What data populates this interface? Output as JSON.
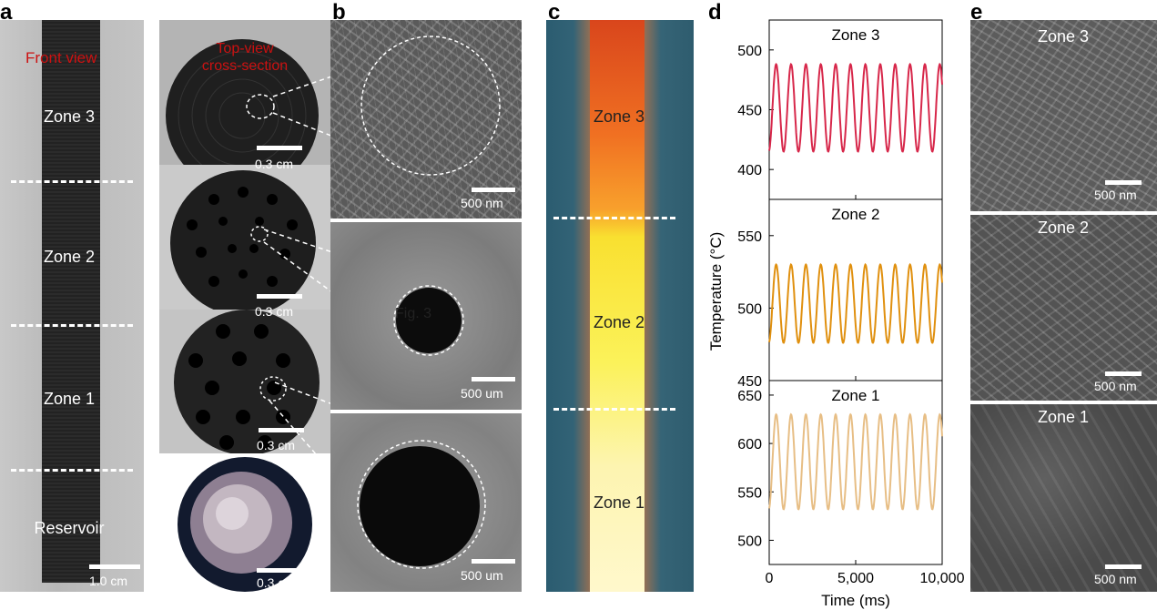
{
  "panel_labels": {
    "a": "a",
    "b": "b",
    "c": "c",
    "d": "d",
    "e": "e"
  },
  "panel_a": {
    "front_view": "Front view",
    "top_view": "Top-view\ncross-section",
    "zones": [
      "Zone 3",
      "Zone 2",
      "Zone 1",
      "Reservoir"
    ],
    "scale_front": "1.0 cm",
    "scale_cross": [
      "0.3 cm",
      "0.3 cm",
      "0.3 cm",
      "0.3 cm"
    ]
  },
  "panel_b": {
    "scales": [
      "500 nm",
      "500 um",
      "500 um"
    ],
    "fig_ref": "Fig. 3"
  },
  "panel_c": {
    "zones": [
      "Zone 3",
      "Zone 2",
      "Zone 1"
    ]
  },
  "panel_e": {
    "zones": [
      "Zone 3",
      "Zone 2",
      "Zone 1"
    ],
    "scales": [
      "500 nm",
      "500 nm",
      "500 nm"
    ]
  },
  "colors": {
    "zone3": "#d7274a",
    "zone2": "#e0900f",
    "zone1": "#e7be85",
    "annotation_red": "#cc1111"
  },
  "chart_data": {
    "type": "line",
    "xlabel": "Time (ms)",
    "ylabel": "Temperature (°C)",
    "xlim": [
      0,
      10000
    ],
    "xticks": [
      "0",
      "5,000",
      "10,000"
    ],
    "panels": [
      {
        "name": "Zone 3",
        "ylim": [
          375,
          525
        ],
        "yticks": [
          400,
          450,
          500
        ],
        "period_ms": 860,
        "min": 415,
        "max": 488
      },
      {
        "name": "Zone 2",
        "ylim": [
          450,
          575
        ],
        "yticks": [
          450,
          500,
          550
        ],
        "period_ms": 860,
        "min": 476,
        "max": 530
      },
      {
        "name": "Zone 1",
        "ylim": [
          475,
          665
        ],
        "yticks": [
          500,
          550,
          600,
          650
        ],
        "period_ms": 860,
        "min": 532,
        "max": 630
      }
    ]
  }
}
